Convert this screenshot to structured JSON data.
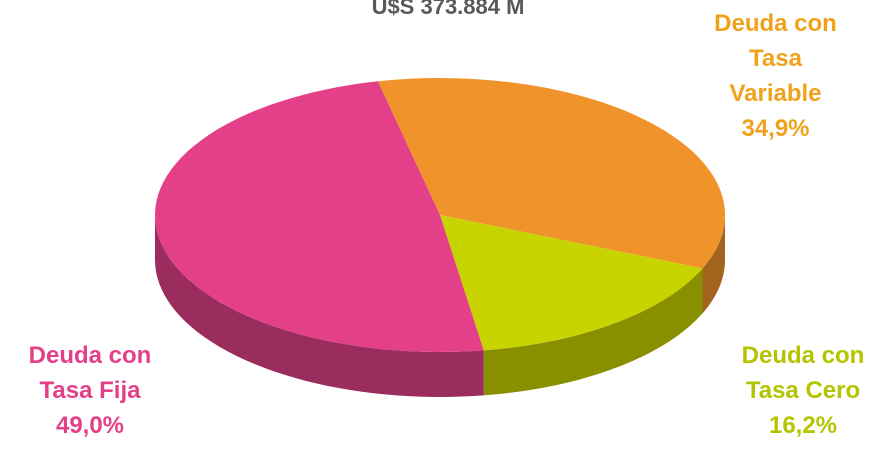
{
  "chart_data": {
    "type": "pie",
    "title": "U$S 373.884 M",
    "categories": [
      "Deuda con Tasa Variable",
      "Deuda con Tasa Cero",
      "Deuda con Tasa Fija"
    ],
    "values": [
      34.9,
      16.2,
      49.0
    ],
    "value_labels": [
      "34,9%",
      "16,2%",
      "49,0%"
    ],
    "colors": [
      "#f0932a",
      "#c8d400",
      "#e4408a"
    ],
    "label_colors": [
      "#f0a21c",
      "#b5c400",
      "#e4408a"
    ]
  }
}
